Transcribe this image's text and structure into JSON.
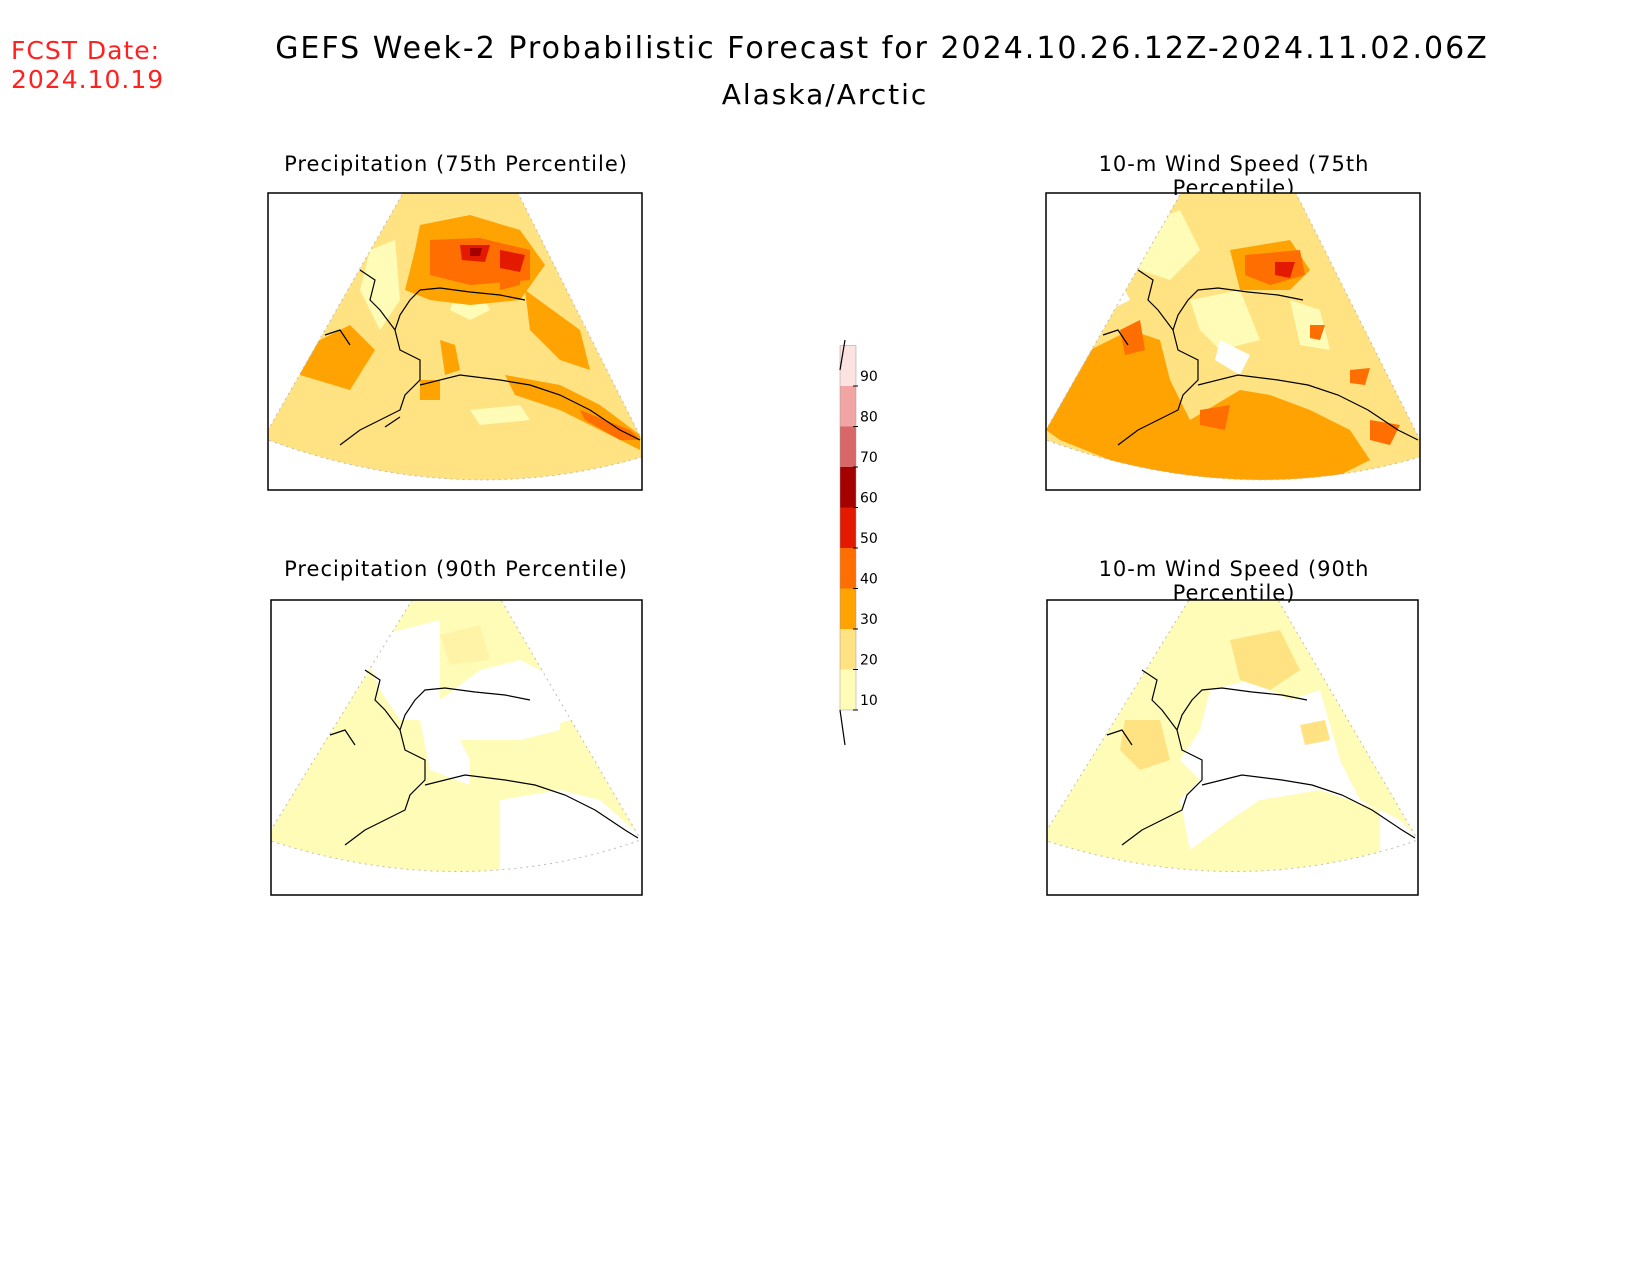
{
  "header": {
    "fcst_label": "FCST Date:",
    "fcst_date": "2024.10.19",
    "title": "GEFS Week-2 Probabilistic Forecast for 2024.10.26.12Z-2024.11.02.06Z",
    "region": "Alaska/Arctic"
  },
  "panels": [
    {
      "title": "Precipitation (75th Percentile)",
      "variable": "precipitation",
      "percentile": 75
    },
    {
      "title": "10-m Wind Speed (75th Percentile)",
      "variable": "wind_speed",
      "percentile": 75
    },
    {
      "title": "Precipitation (90th Percentile)",
      "variable": "precipitation",
      "percentile": 90
    },
    {
      "title": "10-m Wind Speed (90th Percentile)",
      "variable": "wind_speed",
      "percentile": 90
    }
  ],
  "colorbar": {
    "levels": [
      "10",
      "20",
      "30",
      "40",
      "50",
      "60",
      "70",
      "80",
      "90"
    ],
    "colors": [
      "#fffcb8",
      "#ffe281",
      "#ffa302",
      "#ff6e00",
      "#e41a00",
      "#a40000",
      "#d86767",
      "#f2a5a5",
      "#fde2e2"
    ]
  }
}
